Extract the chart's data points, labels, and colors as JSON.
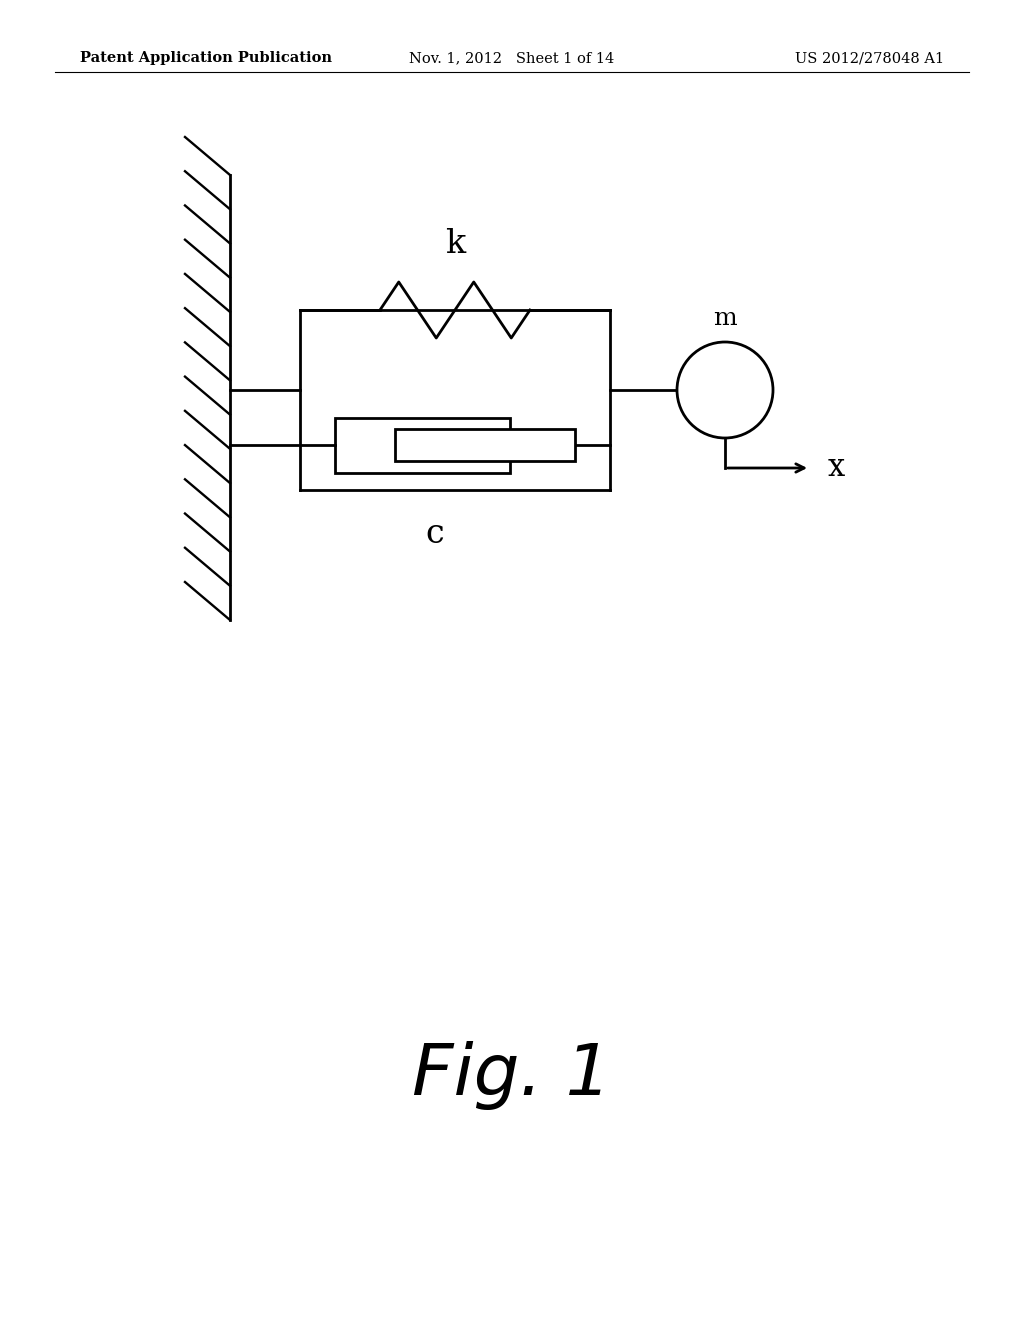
{
  "bg_color": "#ffffff",
  "line_color": "#000000",
  "line_width": 2.0,
  "header_left": "Patent Application Publication",
  "header_mid": "Nov. 1, 2012   Sheet 1 of 14",
  "header_right": "US 2012/278048 A1",
  "header_fontsize": 10.5,
  "fig_label": "Fig. 1",
  "fig_label_fontsize": 52,
  "spring_label": "k",
  "damper_label": "c",
  "mass_label": "m",
  "x_label": "x",
  "label_fontsize": 20
}
